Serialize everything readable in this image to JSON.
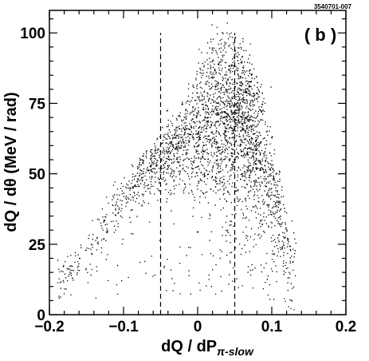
{
  "figure_id": "3540701-007",
  "panel_label": "( b )",
  "chart_data": {
    "type": "scatter",
    "xlabel": "dQ / dP",
    "xlabel_sub": "π-slow",
    "ylabel": "dQ / dθ (MeV / rad)",
    "xlim": [
      -0.2,
      0.2
    ],
    "ylim": [
      0,
      108
    ],
    "x_ticks": [
      -0.2,
      -0.1,
      0,
      0.1,
      0.2
    ],
    "x_tick_labels": [
      "−0.2",
      "−0.1",
      "0",
      "0.1",
      "0.2"
    ],
    "y_ticks": [
      0,
      25,
      50,
      75,
      100
    ],
    "y_tick_labels": [
      "0",
      "25",
      "50",
      "75",
      "100"
    ],
    "cut_lines": [
      {
        "x": -0.05,
        "y_range": [
          0,
          100
        ]
      },
      {
        "x": 0.05,
        "y_range": [
          0,
          100
        ]
      }
    ],
    "grid": false,
    "point_color": "#000000",
    "ridge": {
      "x": [
        -0.18,
        -0.16,
        -0.14,
        -0.12,
        -0.1,
        -0.08,
        -0.06,
        -0.04,
        -0.02,
        0.0,
        0.02,
        0.04,
        0.06,
        0.07,
        0.08,
        0.09,
        0.1,
        0.11,
        0.12,
        0.125
      ],
      "y": [
        13,
        18,
        25,
        33,
        40,
        47,
        52,
        56,
        60,
        63,
        66,
        68,
        67,
        63,
        57,
        50,
        42,
        32,
        20,
        12
      ]
    },
    "upper_edge": {
      "x": [
        -0.17,
        -0.14,
        -0.1,
        -0.06,
        -0.02,
        0.0,
        0.02,
        0.04,
        0.06,
        0.08,
        0.1,
        0.12
      ],
      "y": [
        22,
        35,
        50,
        62,
        75,
        88,
        98,
        100,
        95,
        85,
        65,
        35
      ]
    },
    "point_count": 9000
  }
}
